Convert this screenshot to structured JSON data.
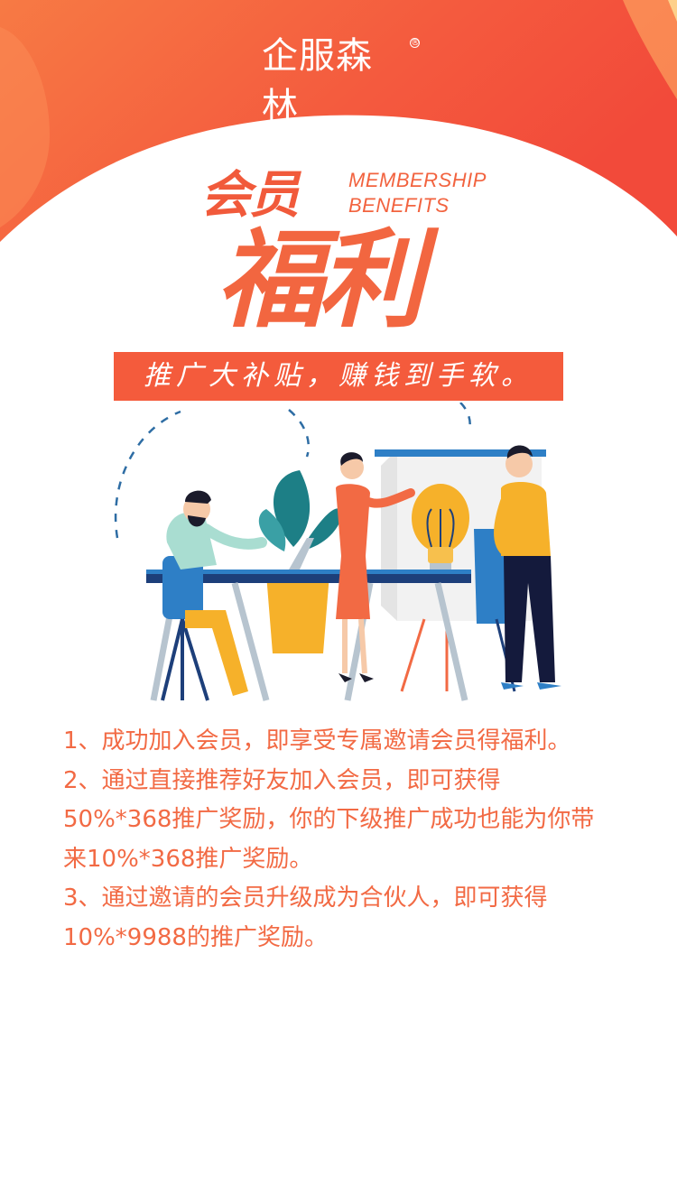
{
  "brand": {
    "logo_text": "企服森林",
    "logo_mark": "®"
  },
  "headline": {
    "small": "会员",
    "en_line1": "MEMBERSHIP",
    "en_line2": "BENEFITS",
    "big": "福利"
  },
  "slogan": "推广大补贴，赚钱到手软。",
  "benefits": [
    "1、成功加入会员，即享受专属邀请会员得福利。",
    "2、通过直接推荐好友加入会员，即可获得",
    "50%*368推广奖励，你的下级推广成功也能为你带",
    "来10%*368推广奖励。",
    "3、通过邀请的会员升级成为合伙人，即可获得",
    "10%*9988的推广奖励。"
  ],
  "colors": {
    "primary": "#f45b3c",
    "text_accent": "#f26a44",
    "header_gradient_start": "#f8743f",
    "header_gradient_end": "#f24b3a"
  },
  "illustration": {
    "name": "team-meeting-illustration",
    "elements": [
      "lightbulb-icon",
      "whiteboard",
      "desk",
      "plant",
      "person-sitting",
      "person-presenting",
      "person-standing"
    ]
  }
}
